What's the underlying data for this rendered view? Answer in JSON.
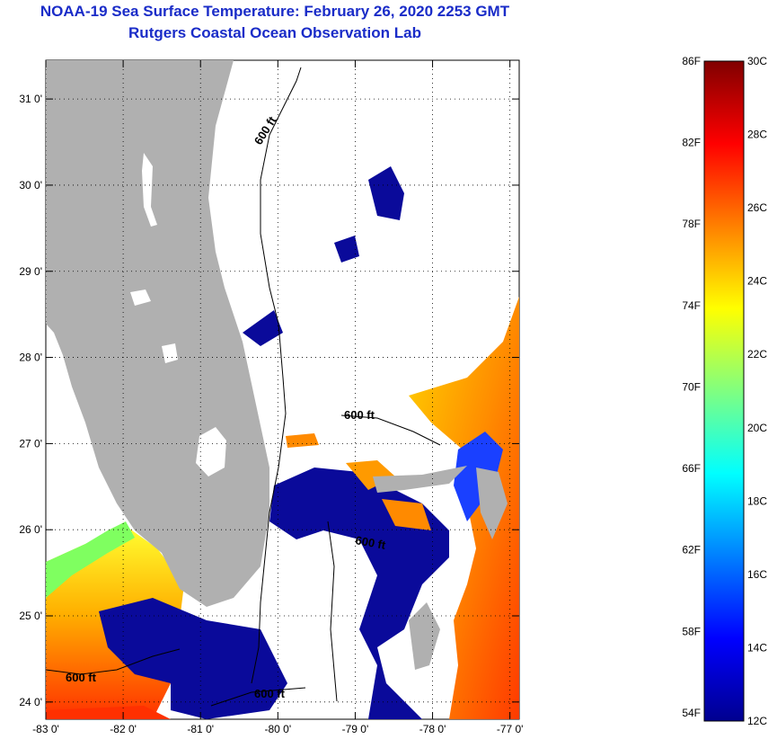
{
  "header": {
    "title": "NOAA-19 Sea Surface Temperature:  February 26, 2020 2253 GMT",
    "subtitle": "Rutgers Coastal Ocean Observation Lab"
  },
  "map": {
    "lat_labels": [
      "31 0'",
      "30 0'",
      "29 0'",
      "28 0'",
      "27 0'",
      "26 0'",
      "25 0'",
      "24 0'"
    ],
    "lon_labels": [
      "-83 0'",
      "-82 0'",
      "-81 0'",
      "-80 0'",
      "-79 0'",
      "-78 0'",
      "-77 0'"
    ],
    "lat_values": [
      31,
      30,
      29,
      28,
      27,
      26,
      25,
      24
    ],
    "lon_values": [
      -83,
      -82,
      -81,
      -80,
      -79,
      -78,
      -77
    ],
    "depth_contour_label": "600 ft",
    "colors": {
      "land": "#b0b0b0",
      "cloud": "#ffffff",
      "depth_line": "#000000"
    }
  },
  "colorbar": {
    "fahrenheit_labels": [
      "86F",
      "82F",
      "78F",
      "74F",
      "70F",
      "66F",
      "62F",
      "58F",
      "54F"
    ],
    "celsius_labels": [
      "30C",
      "28C",
      "26C",
      "24C",
      "22C",
      "20C",
      "18C",
      "16C",
      "14C",
      "12C"
    ],
    "range_c": [
      12,
      30
    ],
    "gradient_colors": [
      "#00008f",
      "#0000ff",
      "#0080ff",
      "#00ffff",
      "#80ff80",
      "#ffff00",
      "#ff8000",
      "#ff0000",
      "#800000"
    ]
  }
}
